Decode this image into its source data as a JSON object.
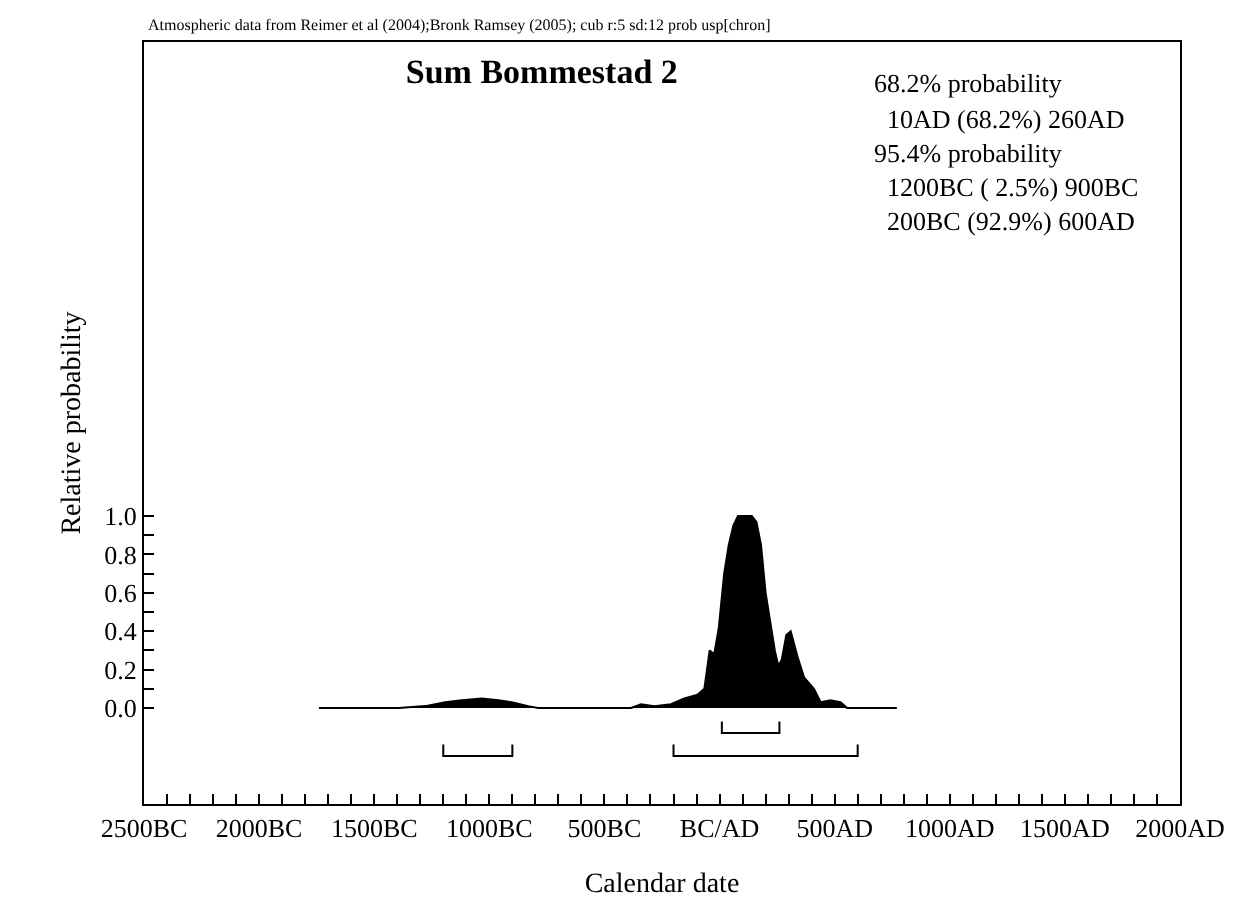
{
  "chart_data": {
    "type": "area",
    "title": "Sum Bommestad 2",
    "xlabel": "Calendar date",
    "ylabel": "Relative probability",
    "annotations": [
      "Atmospheric data from Reimer et al (2004);Bronk Ramsey (2005); cub r:5 sd:12 prob usp[chron]",
      "68.2% probability",
      "  10AD (68.2%) 260AD",
      "95.4% probability",
      "  1200BC ( 2.5%) 900BC",
      "  200BC (92.9%) 600AD"
    ],
    "series": [
      {
        "color": "#000000",
        "x": [
          -1740,
          -1394,
          -1278,
          -1192,
          -1120,
          -1033,
          -961,
          -903,
          -831,
          -788,
          -384,
          -341,
          -283,
          -211,
          -153,
          -95,
          -66,
          -43,
          -23,
          -3,
          20,
          40,
          60,
          80,
          100,
          120,
          140,
          160,
          180,
          200,
          220,
          240,
          255,
          270,
          290,
          309,
          338,
          367,
          410,
          439,
          482,
          525,
          554,
          770
        ],
        "values": [
          0,
          0,
          0.01,
          0.03,
          0.04,
          0.05,
          0.04,
          0.03,
          0.01,
          0,
          0,
          0.02,
          0.01,
          0.02,
          0.05,
          0.07,
          0.1,
          0.3,
          0.28,
          0.42,
          0.7,
          0.85,
          0.95,
          1.0,
          1.0,
          1.0,
          1.0,
          0.97,
          0.85,
          0.6,
          0.45,
          0.3,
          0.22,
          0.25,
          0.38,
          0.4,
          0.27,
          0.16,
          0.1,
          0.03,
          0.04,
          0.03,
          0,
          0
        ]
      },
      {
        "type": "line",
        "color": "#000000",
        "x": [
          10,
          10,
          260,
          260
        ],
        "values": [
          -0.07,
          -0.13,
          -0.13,
          -0.07
        ]
      },
      {
        "type": "line",
        "color": "#000000",
        "x": [
          -1200,
          -1200,
          -900,
          -900
        ],
        "values": [
          -0.19,
          -0.25,
          -0.25,
          -0.19
        ]
      },
      {
        "type": "line",
        "color": "#000000",
        "x": [
          -200,
          -200,
          600,
          600
        ],
        "values": [
          -0.19,
          -0.25,
          -0.25,
          -0.19
        ]
      }
    ],
    "xlim": [
      -2500,
      2000
    ],
    "ylim": [
      -0.5,
      3.47
    ],
    "xticks": [
      {
        "value": -2500,
        "label": "2500BC"
      },
      {
        "value": -2400,
        "label": null
      },
      {
        "value": -2300,
        "label": null
      },
      {
        "value": -2200,
        "label": null
      },
      {
        "value": -2100,
        "label": null
      },
      {
        "value": -2000,
        "label": "2000BC"
      },
      {
        "value": -1900,
        "label": null
      },
      {
        "value": -1800,
        "label": null
      },
      {
        "value": -1700,
        "label": null
      },
      {
        "value": -1600,
        "label": null
      },
      {
        "value": -1500,
        "label": "1500BC"
      },
      {
        "value": -1400,
        "label": null
      },
      {
        "value": -1300,
        "label": null
      },
      {
        "value": -1200,
        "label": null
      },
      {
        "value": -1100,
        "label": null
      },
      {
        "value": -1000,
        "label": "1000BC"
      },
      {
        "value": -900,
        "label": null
      },
      {
        "value": -800,
        "label": null
      },
      {
        "value": -700,
        "label": null
      },
      {
        "value": -600,
        "label": null
      },
      {
        "value": -500,
        "label": "500BC"
      },
      {
        "value": -400,
        "label": null
      },
      {
        "value": -300,
        "label": null
      },
      {
        "value": -200,
        "label": null
      },
      {
        "value": -100,
        "label": null
      },
      {
        "value": 0,
        "label": "BC/AD"
      },
      {
        "value": 100,
        "label": null
      },
      {
        "value": 200,
        "label": null
      },
      {
        "value": 300,
        "label": null
      },
      {
        "value": 400,
        "label": null
      },
      {
        "value": 500,
        "label": "500AD"
      },
      {
        "value": 600,
        "label": null
      },
      {
        "value": 700,
        "label": null
      },
      {
        "value": 800,
        "label": null
      },
      {
        "value": 900,
        "label": null
      },
      {
        "value": 1000,
        "label": "1000AD"
      },
      {
        "value": 1100,
        "label": null
      },
      {
        "value": 1200,
        "label": null
      },
      {
        "value": 1300,
        "label": null
      },
      {
        "value": 1400,
        "label": null
      },
      {
        "value": 1500,
        "label": "1500AD"
      },
      {
        "value": 1600,
        "label": null
      },
      {
        "value": 1700,
        "label": null
      },
      {
        "value": 1800,
        "label": null
      },
      {
        "value": 1900,
        "label": null
      },
      {
        "value": 2000,
        "label": "2000AD"
      }
    ],
    "yticks": [
      {
        "value": 0,
        "label": "0.0"
      },
      {
        "value": 0.1,
        "label": null
      },
      {
        "value": 0.2,
        "label": "0.2"
      },
      {
        "value": 0.3,
        "label": null
      },
      {
        "value": 0.4,
        "label": "0.4"
      },
      {
        "value": 0.5,
        "label": null
      },
      {
        "value": 0.6,
        "label": "0.6"
      },
      {
        "value": 0.7,
        "label": null
      },
      {
        "value": 0.8,
        "label": "0.8"
      },
      {
        "value": 0.9,
        "label": null
      },
      {
        "value": 1.0,
        "label": "1.0"
      }
    ]
  }
}
